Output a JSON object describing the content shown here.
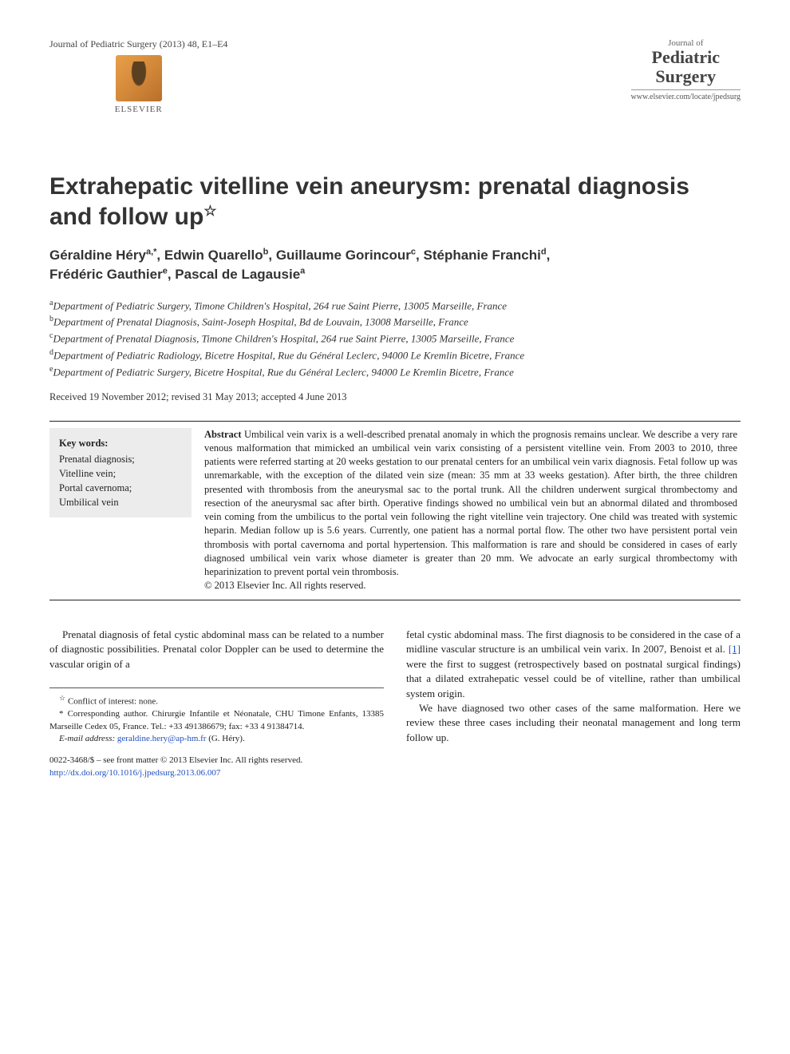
{
  "header": {
    "citation": "Journal of Pediatric Surgery (2013) 48, E1–E4",
    "journal_of": "Journal of",
    "pediatric": "Pediatric",
    "surgery": "Surgery",
    "journal_url": "www.elsevier.com/locate/jpedsurg",
    "elsevier_label": "ELSEVIER"
  },
  "title": {
    "line1": "Extrahepatic vitelline vein aneurysm: prenatal diagnosis",
    "line2": "and follow up",
    "star": "☆"
  },
  "authors": {
    "list": [
      {
        "name": "Géraldine Héry",
        "sup": "a,*"
      },
      {
        "name": "Edwin Quarello",
        "sup": "b"
      },
      {
        "name": "Guillaume Gorincour",
        "sup": "c"
      },
      {
        "name": "Stéphanie Franchi",
        "sup": "d"
      },
      {
        "name": "Frédéric Gauthier",
        "sup": "e"
      },
      {
        "name": "Pascal de Lagausie",
        "sup": "a"
      }
    ]
  },
  "affiliations": [
    {
      "sup": "a",
      "text": "Department of Pediatric Surgery, Timone Children's Hospital, 264 rue Saint Pierre, 13005 Marseille, France"
    },
    {
      "sup": "b",
      "text": "Department of Prenatal Diagnosis, Saint-Joseph Hospital, Bd de Louvain, 13008 Marseille, France"
    },
    {
      "sup": "c",
      "text": "Department of Prenatal Diagnosis, Timone Children's Hospital, 264 rue Saint Pierre, 13005 Marseille, France"
    },
    {
      "sup": "d",
      "text": "Department of Pediatric Radiology, Bicetre Hospital, Rue du Général Leclerc, 94000 Le Kremlin Bicetre, France"
    },
    {
      "sup": "e",
      "text": "Department of Pediatric Surgery, Bicetre Hospital, Rue du Général Leclerc, 94000 Le Kremlin Bicetre, France"
    }
  ],
  "received": "Received 19 November 2012; revised 31 May 2013; accepted 4 June 2013",
  "keywords": {
    "title": "Key words:",
    "items": "Prenatal diagnosis;\nVitelline vein;\nPortal cavernoma;\nUmbilical vein"
  },
  "abstract": {
    "label": "Abstract",
    "text": " Umbilical vein varix is a well-described prenatal anomaly in which the prognosis remains unclear. We describe a very rare venous malformation that mimicked an umbilical vein varix consisting of a persistent vitelline vein. From 2003 to 2010, three patients were referred starting at 20 weeks gestation to our prenatal centers for an umbilical vein varix diagnosis. Fetal follow up was unremarkable, with the exception of the dilated vein size (mean: 35 mm at 33 weeks gestation). After birth, the three children presented with thrombosis from the aneurysmal sac to the portal trunk. All the children underwent surgical thrombectomy and resection of the aneurysmal sac after birth. Operative findings showed no umbilical vein but an abnormal dilated and thrombosed vein coming from the umbilicus to the portal vein following the right vitelline vein trajectory. One child was treated with systemic heparin. Median follow up is 5.6 years. Currently, one patient has a normal portal flow. The other two have persistent portal vein thrombosis with portal cavernoma and portal hypertension. This malformation is rare and should be considered in cases of early diagnosed umbilical vein varix whose diameter is greater than 20 mm. We advocate an early surgical thrombectomy with heparinization to prevent portal vein thrombosis.",
    "copyright": "© 2013 Elsevier Inc. All rights reserved."
  },
  "body": {
    "col1_p1": "Prenatal diagnosis of fetal cystic abdominal mass can be related to a number of diagnostic possibilities. Prenatal color Doppler can be used to determine the vascular origin of a",
    "col2_p1_a": "fetal cystic abdominal mass. The first diagnosis to be considered in the case of a midline vascular structure is an umbilical vein varix. In 2007, Benoist et al. ",
    "col2_p1_ref": "[1]",
    "col2_p1_b": " were the first to suggest (retrospectively based on postnatal surgical findings) that a dilated extrahepatic vessel could be of vitelline, rather than umbilical system origin.",
    "col2_p2": "We have diagnosed two other cases of the same malformation. Here we review these three cases including their neonatal management and long term follow up."
  },
  "footnotes": {
    "conflict": "Conflict of interest: none.",
    "corresponding": "Corresponding author. Chirurgie Infantile et Néonatale, CHU Timone Enfants, 13385 Marseille Cedex 05, France. Tel.: +33 491386679; fax: +33 4 91384714.",
    "email_label": "E-mail address:",
    "email": "geraldine.hery@ap-hm.fr",
    "email_author": "(G. Héry)."
  },
  "bottom": {
    "issn": "0022-3468/$ – see front matter © 2013 Elsevier Inc. All rights reserved.",
    "doi": "http://dx.doi.org/10.1016/j.jpedsurg.2013.06.007"
  },
  "colors": {
    "text": "#222222",
    "link": "#2050c0",
    "keywords_bg": "#ececec",
    "rule": "#222222"
  }
}
